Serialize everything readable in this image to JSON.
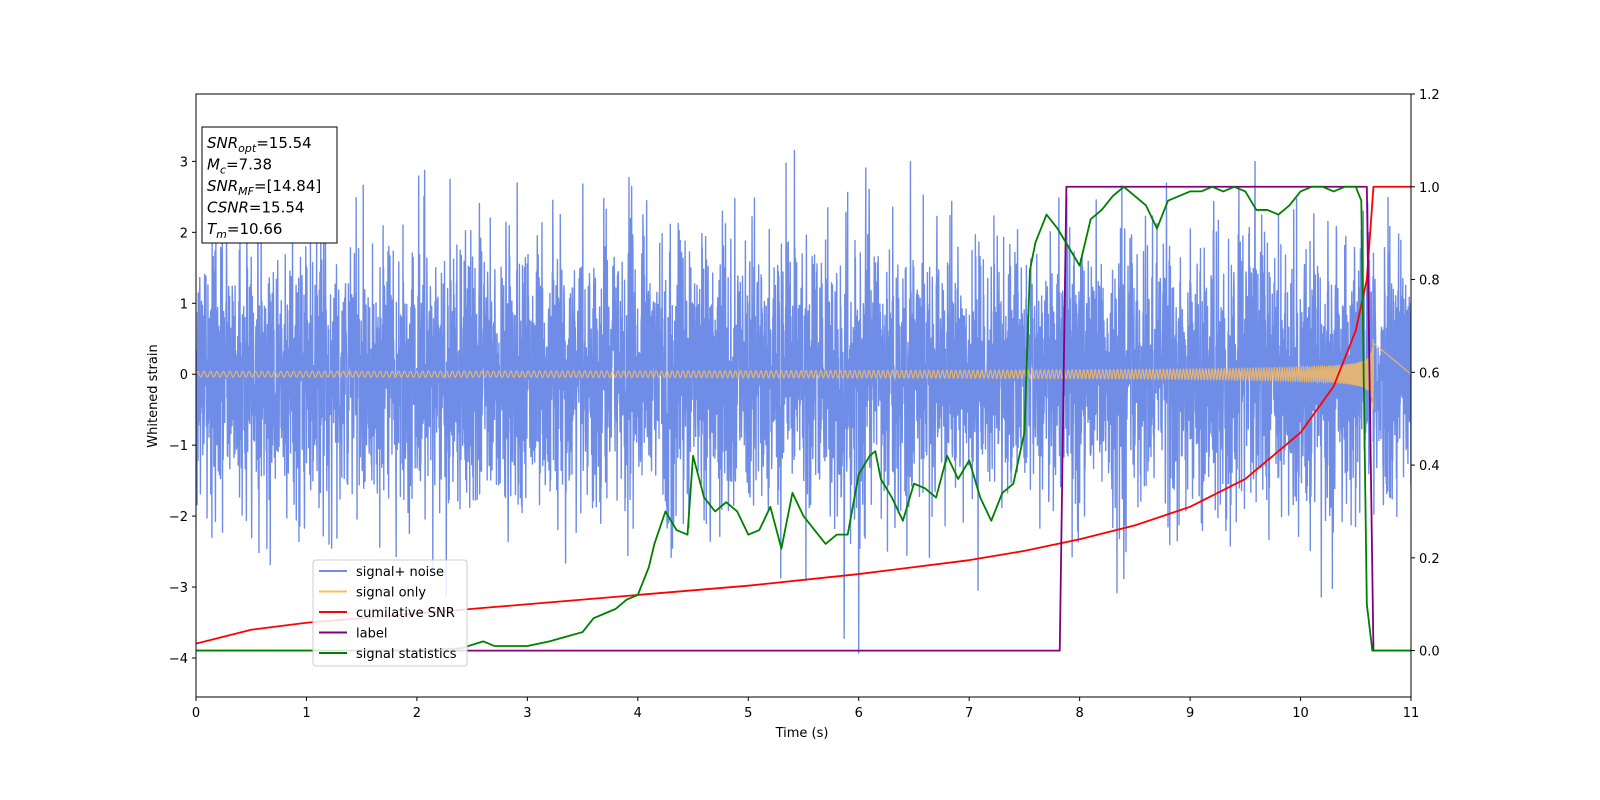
{
  "chart_data": {
    "type": "line",
    "xlabel": "Time (s)",
    "ylabel": "Whitened strain",
    "xlim": [
      0,
      11
    ],
    "ylim": [
      -4.55,
      3.95
    ],
    "y2lim": [
      -0.1,
      1.2
    ],
    "x_ticks": [
      0,
      1,
      2,
      3,
      4,
      5,
      6,
      7,
      8,
      9,
      10,
      11
    ],
    "y_ticks": [
      -4,
      -3,
      -2,
      -1,
      0,
      1,
      2,
      3
    ],
    "y2_ticks": [
      0.0,
      0.2,
      0.4,
      0.6,
      0.8,
      1.0,
      1.2
    ],
    "y_tick_labels": [
      "−4",
      "−3",
      "−2",
      "−1",
      "0",
      "1",
      "2",
      "3"
    ],
    "y2_tick_labels": [
      "0.0",
      "0.2",
      "0.4",
      "0.6",
      "0.8",
      "1.0",
      "1.2"
    ],
    "grid": false,
    "legend_position": "lower-left",
    "annotation": [
      {
        "base": "SNR",
        "sub": "opt",
        "value": "=15.54"
      },
      {
        "base": "M",
        "sub": "c",
        "value": "=7.38"
      },
      {
        "base": "SNR",
        "sub": "MF",
        "value": "=[14.84]"
      },
      {
        "base": "CSNR",
        "sub": "",
        "value": "=15.54"
      },
      {
        "base": "T",
        "sub": "m",
        "value": "=10.66"
      }
    ],
    "series": [
      {
        "name": "signal+ noise",
        "color": "#6f8de6",
        "axis": "left",
        "kind": "noisy-strain",
        "noise_std": 0.95,
        "spike_max": 3.55,
        "spike_min": -4.15,
        "span": [
          0,
          11
        ]
      },
      {
        "name": "signal only",
        "color": "#ffbd5a",
        "axis": "left",
        "kind": "chirp",
        "merger_time": 10.66,
        "amplitude_start": 0.04,
        "amplitude_end": 0.9
      },
      {
        "name": "cumilative SNR",
        "color": "#ff0000",
        "axis": "right",
        "x": [
          0,
          0.5,
          1,
          2,
          3,
          4,
          5,
          6,
          7,
          7.5,
          8,
          8.5,
          9,
          9.5,
          10,
          10.3,
          10.5,
          10.6,
          10.66,
          11
        ],
        "y": [
          0.015,
          0.045,
          0.06,
          0.08,
          0.1,
          0.12,
          0.14,
          0.165,
          0.195,
          0.215,
          0.24,
          0.27,
          0.31,
          0.37,
          0.47,
          0.57,
          0.69,
          0.8,
          1.0,
          1.0
        ]
      },
      {
        "name": "label",
        "color": "#800080",
        "axis": "right",
        "x": [
          0,
          7.82,
          7.88,
          10.6,
          10.66,
          11
        ],
        "y": [
          0,
          0,
          1.0,
          1.0,
          0,
          0
        ]
      },
      {
        "name": "signal statistics",
        "color": "#008000",
        "axis": "right",
        "x": [
          0,
          1,
          2,
          2.4,
          2.6,
          2.7,
          2.8,
          3.0,
          3.2,
          3.5,
          3.6,
          3.7,
          3.8,
          3.9,
          4.0,
          4.1,
          4.15,
          4.25,
          4.35,
          4.45,
          4.5,
          4.6,
          4.7,
          4.8,
          4.9,
          5.0,
          5.1,
          5.2,
          5.3,
          5.4,
          5.5,
          5.6,
          5.7,
          5.8,
          5.9,
          6.0,
          6.1,
          6.15,
          6.2,
          6.3,
          6.4,
          6.5,
          6.6,
          6.7,
          6.8,
          6.9,
          7.0,
          7.1,
          7.2,
          7.3,
          7.4,
          7.5,
          7.55,
          7.6,
          7.65,
          7.7,
          7.8,
          7.9,
          8.0,
          8.1,
          8.2,
          8.3,
          8.4,
          8.5,
          8.6,
          8.7,
          8.8,
          8.9,
          9.0,
          9.1,
          9.2,
          9.3,
          9.4,
          9.5,
          9.6,
          9.7,
          9.8,
          9.9,
          10.0,
          10.1,
          10.2,
          10.3,
          10.4,
          10.5,
          10.55,
          10.6,
          10.65,
          10.7,
          10.8,
          11
        ],
        "y": [
          0.0,
          0.0,
          0.0,
          0.005,
          0.02,
          0.01,
          0.01,
          0.01,
          0.02,
          0.04,
          0.07,
          0.08,
          0.09,
          0.11,
          0.12,
          0.18,
          0.23,
          0.3,
          0.26,
          0.25,
          0.42,
          0.33,
          0.3,
          0.32,
          0.3,
          0.25,
          0.26,
          0.31,
          0.22,
          0.34,
          0.29,
          0.26,
          0.23,
          0.25,
          0.25,
          0.38,
          0.42,
          0.43,
          0.37,
          0.33,
          0.28,
          0.36,
          0.35,
          0.33,
          0.42,
          0.37,
          0.41,
          0.33,
          0.28,
          0.34,
          0.36,
          0.47,
          0.82,
          0.88,
          0.91,
          0.94,
          0.91,
          0.87,
          0.83,
          0.93,
          0.95,
          0.98,
          1.0,
          0.98,
          0.96,
          0.91,
          0.97,
          0.98,
          0.99,
          0.99,
          1.0,
          0.99,
          1.0,
          0.99,
          0.95,
          0.95,
          0.94,
          0.96,
          0.99,
          1.0,
          1.0,
          0.99,
          1.0,
          1.0,
          0.97,
          0.1,
          0.0,
          0.0,
          0.0,
          0.0
        ]
      }
    ]
  }
}
